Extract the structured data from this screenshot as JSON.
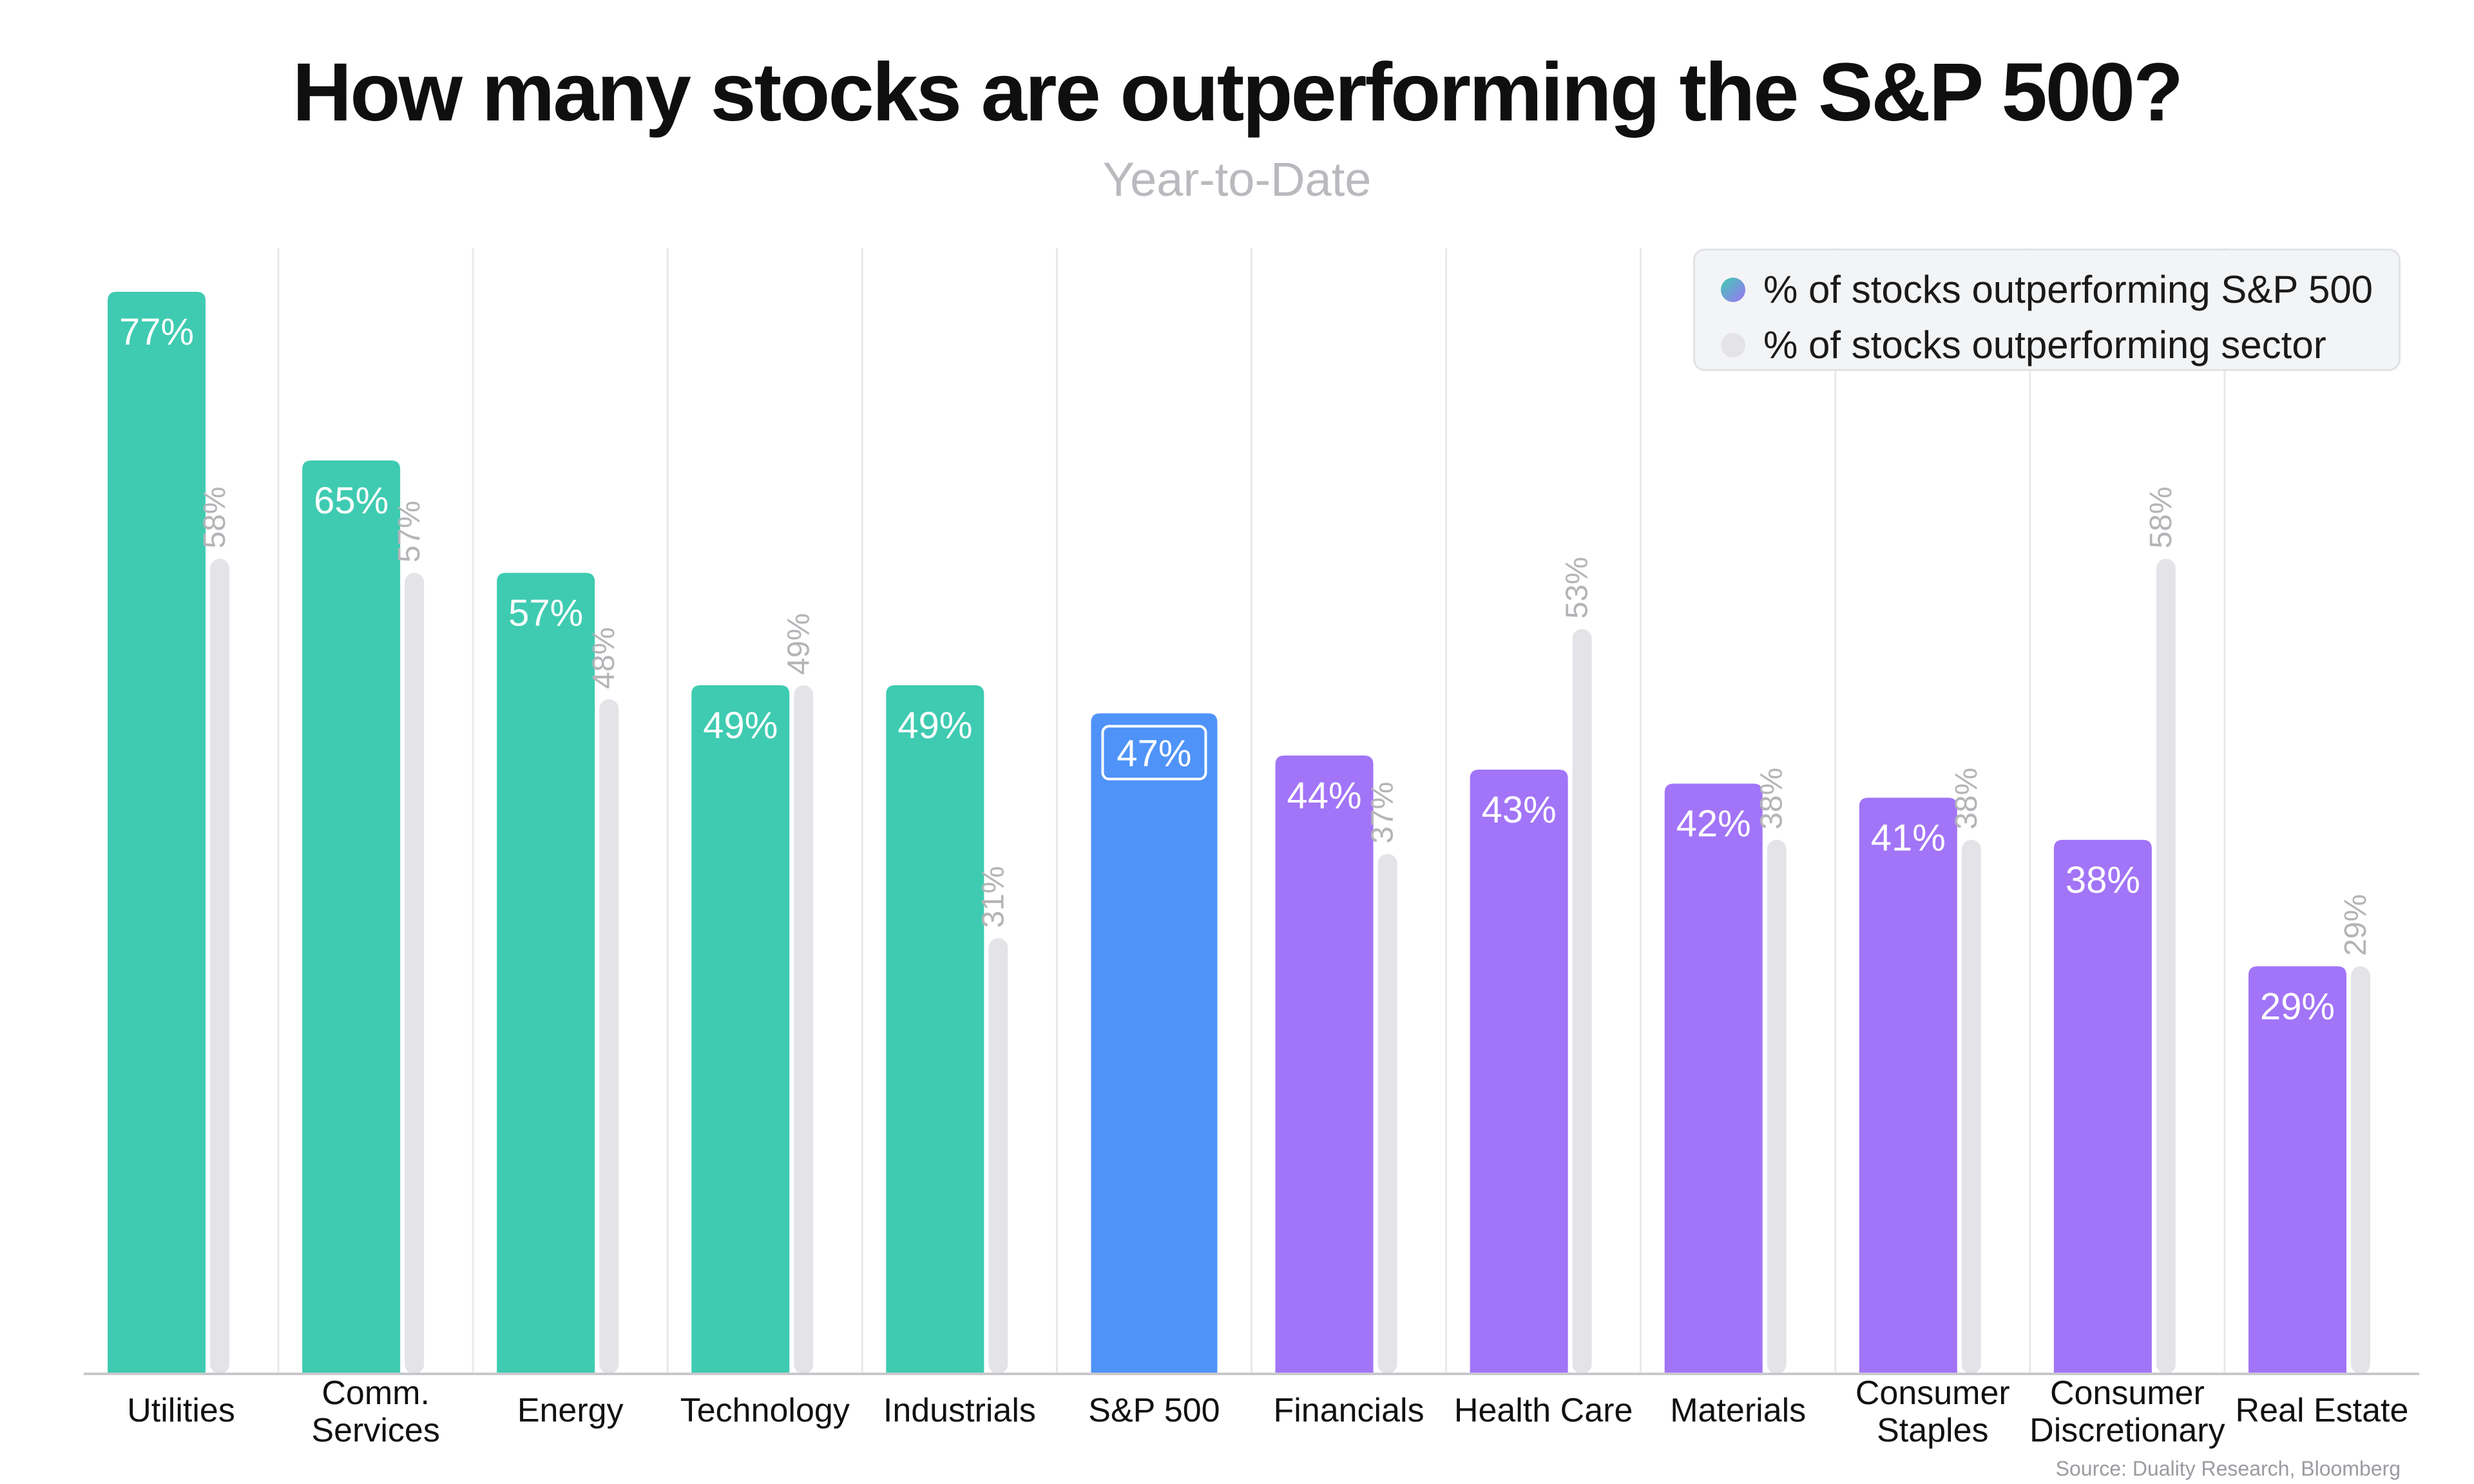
{
  "title": "How many stocks are outperforming the S&P 500?",
  "subtitle": "Year-to-Date",
  "source": "Source: Duality Research, Bloomberg",
  "legend": [
    {
      "label": "% of stocks outperforming S&P 500",
      "gradient": [
        "#3ecbb1",
        "#9d74f7"
      ]
    },
    {
      "label": "% of stocks outperforming sector",
      "color": "#e4e4e8"
    }
  ],
  "colors": {
    "teal": "#3ecbb1",
    "blue": "#4f93f8",
    "purple": "#a274f7",
    "gray_bar": "#e4e4e8",
    "gray_label": "#b4b4b8",
    "grid": "#e9e9ec",
    "axis": "#c8c8cc"
  },
  "chart_data": {
    "type": "bar",
    "title": "How many stocks are outperforming the S&P 500?",
    "subtitle": "Year-to-Date",
    "categories": [
      [
        "Utilities"
      ],
      [
        "Comm.",
        "Services"
      ],
      [
        "Energy"
      ],
      [
        "Technology"
      ],
      [
        "Industrials"
      ],
      [
        "S&P 500"
      ],
      [
        "Financials"
      ],
      [
        "Health Care"
      ],
      [
        "Materials"
      ],
      [
        "Consumer",
        "Staples"
      ],
      [
        "Consumer",
        "Discretionary"
      ],
      [
        "Real Estate"
      ]
    ],
    "series": [
      {
        "name": "% of stocks outperforming S&P 500",
        "values": [
          77,
          65,
          57,
          49,
          49,
          47,
          44,
          43,
          42,
          41,
          38,
          29
        ],
        "labels": [
          "77%",
          "65%",
          "57%",
          "49%",
          "49%",
          "47%",
          "44%",
          "43%",
          "42%",
          "41%",
          "38%",
          "29%"
        ],
        "bar_colors": [
          "teal",
          "teal",
          "teal",
          "teal",
          "teal",
          "blue",
          "purple",
          "purple",
          "purple",
          "purple",
          "purple",
          "purple"
        ]
      },
      {
        "name": "% of stocks outperforming sector",
        "values": [
          58,
          57,
          48,
          49,
          31,
          null,
          37,
          53,
          38,
          38,
          58,
          29
        ],
        "labels": [
          "58%",
          "57%",
          "48%",
          "49%",
          "31%",
          null,
          "37%",
          "53%",
          "38%",
          "38%",
          "58%",
          "29%"
        ]
      }
    ],
    "ylim": [
      0,
      100
    ],
    "grid": "vertical separators",
    "legend_position": "top-right"
  }
}
